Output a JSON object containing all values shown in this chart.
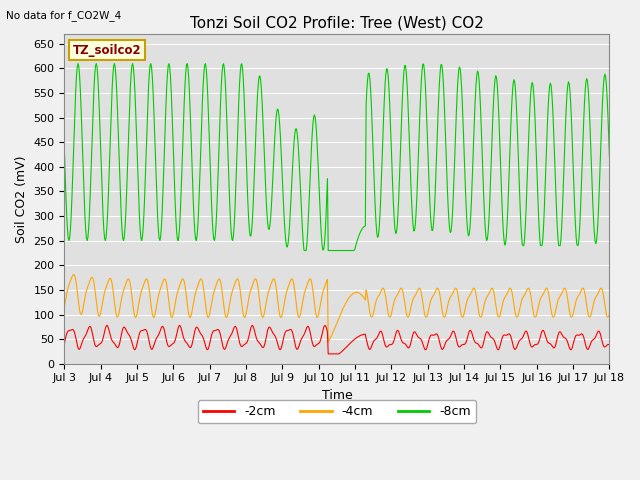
{
  "title": "Tonzi Soil CO2 Profile: Tree (West) CO2",
  "top_left_text": "No data for f_CO2W_4",
  "ylabel": "Soil CO2 (mV)",
  "xlabel": "Time",
  "legend_label": "TZ_soilco2",
  "series_labels": [
    "-2cm",
    "-4cm",
    "-8cm"
  ],
  "series_colors": [
    "#ff0000",
    "#ffa500",
    "#00cc00"
  ],
  "ylim": [
    0,
    670
  ],
  "yticks": [
    0,
    50,
    100,
    150,
    200,
    250,
    300,
    350,
    400,
    450,
    500,
    550,
    600,
    650
  ],
  "x_start_day": 3,
  "x_end_day": 18,
  "xtick_days": [
    3,
    4,
    5,
    6,
    7,
    8,
    9,
    10,
    11,
    12,
    13,
    14,
    15,
    16,
    17,
    18
  ],
  "bg_color": "#e0e0e0",
  "fig_bg_color": "#f0f0f0",
  "grid_color": "#ffffff",
  "title_fontsize": 11,
  "axis_fontsize": 9,
  "tick_fontsize": 8,
  "legend_box_color": "#ffffe0",
  "legend_box_edge": "#c8a000"
}
